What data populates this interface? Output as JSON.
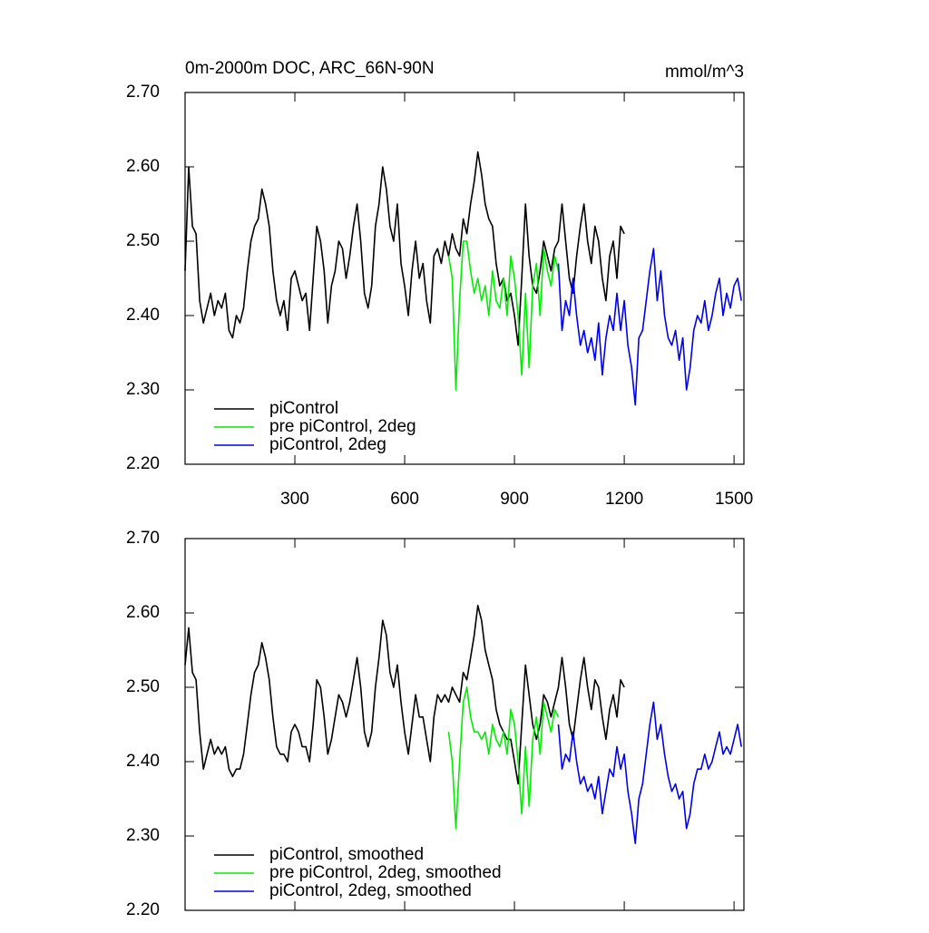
{
  "chart_data": [
    {
      "type": "line",
      "title": "0m-2000m DOC, ARC_66N-90N",
      "units": "mmol/m^3",
      "xlim": [
        0,
        1527
      ],
      "xticks": [
        300,
        600,
        900,
        1200,
        1500
      ],
      "ylim": [
        2.2,
        2.7
      ],
      "yticks": [
        {
          "value": 2.2,
          "label": "2.20"
        },
        {
          "value": 2.3,
          "label": "2.30"
        },
        {
          "value": 2.4,
          "label": "2.40"
        },
        {
          "value": 2.5,
          "label": "2.50"
        },
        {
          "value": 2.6,
          "label": "2.60"
        },
        {
          "value": 2.7,
          "label": "2.70"
        }
      ],
      "legend": "lower left",
      "series": [
        {
          "name": "piControl",
          "color": "#000000",
          "x": [
            0,
            10,
            20,
            30,
            40,
            50,
            60,
            70,
            80,
            90,
            100,
            110,
            120,
            130,
            140,
            150,
            160,
            170,
            180,
            190,
            200,
            210,
            220,
            230,
            240,
            250,
            260,
            270,
            280,
            290,
            300,
            310,
            320,
            330,
            340,
            350,
            360,
            370,
            380,
            390,
            400,
            410,
            420,
            430,
            440,
            450,
            460,
            470,
            480,
            490,
            500,
            510,
            520,
            530,
            540,
            550,
            560,
            570,
            580,
            590,
            600,
            610,
            620,
            630,
            640,
            650,
            660,
            670,
            680,
            690,
            700,
            710,
            720,
            730,
            740,
            750,
            760,
            770,
            780,
            790,
            800,
            810,
            820,
            830,
            840,
            850,
            860,
            870,
            880,
            890,
            900,
            910,
            920,
            930,
            940,
            950,
            960,
            970,
            980,
            990,
            1000,
            1010,
            1020,
            1030,
            1040,
            1050,
            1060,
            1070,
            1080,
            1090,
            1100,
            1110,
            1120,
            1130,
            1140,
            1150,
            1160,
            1170,
            1180,
            1190,
            1200
          ],
          "values": [
            2.46,
            2.6,
            2.52,
            2.51,
            2.42,
            2.39,
            2.41,
            2.43,
            2.4,
            2.42,
            2.41,
            2.43,
            2.38,
            2.37,
            2.4,
            2.39,
            2.41,
            2.46,
            2.5,
            2.52,
            2.53,
            2.57,
            2.55,
            2.52,
            2.46,
            2.42,
            2.4,
            2.42,
            2.38,
            2.45,
            2.46,
            2.44,
            2.42,
            2.43,
            2.38,
            2.45,
            2.52,
            2.5,
            2.46,
            2.39,
            2.44,
            2.46,
            2.5,
            2.49,
            2.45,
            2.48,
            2.52,
            2.55,
            2.5,
            2.43,
            2.41,
            2.44,
            2.52,
            2.55,
            2.6,
            2.57,
            2.52,
            2.5,
            2.55,
            2.47,
            2.44,
            2.4,
            2.46,
            2.5,
            2.45,
            2.47,
            2.42,
            2.39,
            2.48,
            2.49,
            2.47,
            2.5,
            2.48,
            2.51,
            2.49,
            2.48,
            2.53,
            2.51,
            2.55,
            2.58,
            2.62,
            2.59,
            2.55,
            2.53,
            2.52,
            2.47,
            2.44,
            2.45,
            2.42,
            2.43,
            2.4,
            2.36,
            2.45,
            2.55,
            2.48,
            2.44,
            2.43,
            2.46,
            2.5,
            2.48,
            2.46,
            2.49,
            2.5,
            2.55,
            2.5,
            2.45,
            2.43,
            2.48,
            2.52,
            2.55,
            2.5,
            2.47,
            2.52,
            2.5,
            2.45,
            2.42,
            2.48,
            2.5,
            2.45,
            2.52,
            2.51
          ]
        },
        {
          "name": "pre piControl, 2deg",
          "color": "#00ee00",
          "x": [
            720,
            730,
            740,
            750,
            760,
            770,
            780,
            790,
            800,
            810,
            820,
            830,
            840,
            850,
            860,
            870,
            880,
            890,
            900,
            910,
            920,
            930,
            940,
            950,
            960,
            970,
            980,
            990,
            1000,
            1010,
            1020
          ],
          "values": [
            2.48,
            2.45,
            2.3,
            2.42,
            2.5,
            2.5,
            2.46,
            2.43,
            2.45,
            2.42,
            2.44,
            2.4,
            2.46,
            2.42,
            2.41,
            2.45,
            2.4,
            2.48,
            2.45,
            2.4,
            2.32,
            2.43,
            2.33,
            2.44,
            2.47,
            2.4,
            2.49,
            2.46,
            2.44,
            2.48,
            2.46
          ]
        },
        {
          "name": "piControl, 2deg",
          "color": "#0000ee",
          "x": [
            1020,
            1030,
            1040,
            1050,
            1060,
            1070,
            1080,
            1090,
            1100,
            1110,
            1120,
            1130,
            1140,
            1150,
            1160,
            1170,
            1180,
            1190,
            1200,
            1210,
            1220,
            1230,
            1240,
            1250,
            1260,
            1270,
            1280,
            1290,
            1300,
            1310,
            1320,
            1330,
            1340,
            1350,
            1360,
            1370,
            1380,
            1390,
            1400,
            1410,
            1420,
            1430,
            1440,
            1450,
            1460,
            1470,
            1480,
            1490,
            1500,
            1510,
            1520
          ],
          "values": [
            2.47,
            2.38,
            2.42,
            2.4,
            2.45,
            2.4,
            2.36,
            2.38,
            2.35,
            2.37,
            2.34,
            2.39,
            2.32,
            2.37,
            2.4,
            2.38,
            2.43,
            2.38,
            2.42,
            2.36,
            2.33,
            2.28,
            2.37,
            2.38,
            2.42,
            2.46,
            2.49,
            2.42,
            2.46,
            2.4,
            2.37,
            2.36,
            2.38,
            2.34,
            2.37,
            2.3,
            2.33,
            2.38,
            2.4,
            2.39,
            2.42,
            2.38,
            2.4,
            2.43,
            2.45,
            2.4,
            2.43,
            2.41,
            2.44,
            2.45,
            2.42
          ]
        }
      ]
    },
    {
      "type": "line",
      "xlim": [
        0,
        1527
      ],
      "xticks": [
        300,
        600,
        900,
        1200,
        1500
      ],
      "ylim": [
        2.2,
        2.7
      ],
      "yticks": [
        {
          "value": 2.2,
          "label": "2.20"
        },
        {
          "value": 2.3,
          "label": "2.30"
        },
        {
          "value": 2.4,
          "label": "2.40"
        },
        {
          "value": 2.5,
          "label": "2.50"
        },
        {
          "value": 2.6,
          "label": "2.60"
        },
        {
          "value": 2.7,
          "label": "2.70"
        }
      ],
      "legend": "lower left",
      "series": [
        {
          "name": "piControl, smoothed",
          "color": "#000000",
          "x": [
            0,
            10,
            20,
            30,
            40,
            50,
            60,
            70,
            80,
            90,
            100,
            110,
            120,
            130,
            140,
            150,
            160,
            170,
            180,
            190,
            200,
            210,
            220,
            230,
            240,
            250,
            260,
            270,
            280,
            290,
            300,
            310,
            320,
            330,
            340,
            350,
            360,
            370,
            380,
            390,
            400,
            410,
            420,
            430,
            440,
            450,
            460,
            470,
            480,
            490,
            500,
            510,
            520,
            530,
            540,
            550,
            560,
            570,
            580,
            590,
            600,
            610,
            620,
            630,
            640,
            650,
            660,
            670,
            680,
            690,
            700,
            710,
            720,
            730,
            740,
            750,
            760,
            770,
            780,
            790,
            800,
            810,
            820,
            830,
            840,
            850,
            860,
            870,
            880,
            890,
            900,
            910,
            920,
            930,
            940,
            950,
            960,
            970,
            980,
            990,
            1000,
            1010,
            1020,
            1030,
            1040,
            1050,
            1060,
            1070,
            1080,
            1090,
            1100,
            1110,
            1120,
            1130,
            1140,
            1150,
            1160,
            1170,
            1180,
            1190,
            1200
          ],
          "values": [
            2.53,
            2.58,
            2.52,
            2.51,
            2.44,
            2.39,
            2.41,
            2.43,
            2.41,
            2.42,
            2.41,
            2.42,
            2.39,
            2.38,
            2.39,
            2.39,
            2.41,
            2.45,
            2.49,
            2.52,
            2.53,
            2.56,
            2.54,
            2.51,
            2.46,
            2.42,
            2.41,
            2.41,
            2.4,
            2.44,
            2.45,
            2.44,
            2.42,
            2.42,
            2.4,
            2.45,
            2.51,
            2.5,
            2.46,
            2.41,
            2.43,
            2.46,
            2.49,
            2.48,
            2.46,
            2.48,
            2.51,
            2.54,
            2.5,
            2.44,
            2.42,
            2.44,
            2.5,
            2.54,
            2.59,
            2.57,
            2.52,
            2.5,
            2.53,
            2.48,
            2.44,
            2.41,
            2.45,
            2.49,
            2.46,
            2.46,
            2.43,
            2.4,
            2.46,
            2.49,
            2.48,
            2.49,
            2.48,
            2.5,
            2.49,
            2.48,
            2.52,
            2.51,
            2.54,
            2.57,
            2.61,
            2.59,
            2.55,
            2.53,
            2.51,
            2.47,
            2.45,
            2.44,
            2.43,
            2.43,
            2.4,
            2.37,
            2.45,
            2.53,
            2.49,
            2.45,
            2.43,
            2.45,
            2.49,
            2.48,
            2.46,
            2.48,
            2.5,
            2.54,
            2.5,
            2.45,
            2.43,
            2.47,
            2.51,
            2.54,
            2.5,
            2.47,
            2.51,
            2.5,
            2.46,
            2.43,
            2.47,
            2.49,
            2.46,
            2.51,
            2.5
          ]
        },
        {
          "name": "pre piControl, 2deg, smoothed",
          "color": "#00ee00",
          "x": [
            720,
            730,
            740,
            750,
            760,
            770,
            780,
            790,
            800,
            810,
            820,
            830,
            840,
            850,
            860,
            870,
            880,
            890,
            900,
            910,
            920,
            930,
            940,
            950,
            960,
            970,
            980,
            990,
            1000,
            1010,
            1020
          ],
          "values": [
            2.44,
            2.4,
            2.31,
            2.4,
            2.48,
            2.5,
            2.46,
            2.44,
            2.44,
            2.43,
            2.44,
            2.41,
            2.45,
            2.43,
            2.42,
            2.44,
            2.41,
            2.47,
            2.45,
            2.4,
            2.33,
            2.42,
            2.34,
            2.43,
            2.46,
            2.41,
            2.48,
            2.46,
            2.44,
            2.47,
            2.46
          ]
        },
        {
          "name": "piControl, 2deg, smoothed",
          "color": "#0000ee",
          "x": [
            1020,
            1030,
            1040,
            1050,
            1060,
            1070,
            1080,
            1090,
            1100,
            1110,
            1120,
            1130,
            1140,
            1150,
            1160,
            1170,
            1180,
            1190,
            1200,
            1210,
            1220,
            1230,
            1240,
            1250,
            1260,
            1270,
            1280,
            1290,
            1300,
            1310,
            1320,
            1330,
            1340,
            1350,
            1360,
            1370,
            1380,
            1390,
            1400,
            1410,
            1420,
            1430,
            1440,
            1450,
            1460,
            1470,
            1480,
            1490,
            1500,
            1510,
            1520
          ],
          "values": [
            2.45,
            2.39,
            2.41,
            2.4,
            2.44,
            2.4,
            2.37,
            2.38,
            2.36,
            2.37,
            2.35,
            2.38,
            2.33,
            2.36,
            2.39,
            2.38,
            2.42,
            2.39,
            2.41,
            2.36,
            2.33,
            2.29,
            2.35,
            2.37,
            2.41,
            2.45,
            2.48,
            2.43,
            2.45,
            2.41,
            2.38,
            2.36,
            2.37,
            2.35,
            2.36,
            2.31,
            2.33,
            2.37,
            2.39,
            2.39,
            2.41,
            2.39,
            2.4,
            2.42,
            2.44,
            2.41,
            2.42,
            2.41,
            2.43,
            2.45,
            2.42
          ]
        }
      ]
    }
  ]
}
